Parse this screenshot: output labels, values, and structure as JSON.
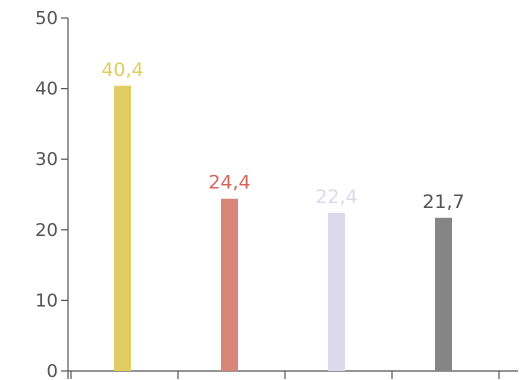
{
  "chart_data": {
    "type": "bar",
    "title": "",
    "xlabel": "",
    "ylabel": "",
    "ylim": [
      0,
      50
    ],
    "yticks": [
      0,
      10,
      20,
      30,
      40,
      50
    ],
    "grid": false,
    "legend": "none",
    "categories": [
      "",
      "",
      "",
      ""
    ],
    "series": [
      {
        "values": [
          40.4,
          24.4,
          22.4,
          21.7
        ],
        "labels": [
          "40,4",
          "24,4",
          "22,4",
          "21,7"
        ],
        "colors": [
          "#dfcd63",
          "#d98578",
          "#dcd9ea",
          "#858585"
        ],
        "label_colors": [
          "#dfcd63",
          "#d2675a",
          "#dcd9ea",
          "#555555"
        ]
      }
    ]
  }
}
